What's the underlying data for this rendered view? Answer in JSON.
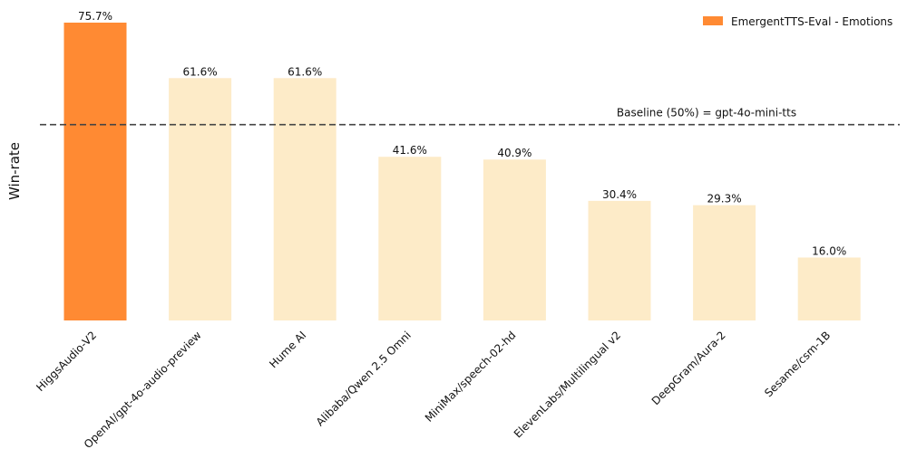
{
  "chart_data": {
    "type": "bar",
    "title": "",
    "xlabel": "",
    "ylabel": "Win-rate",
    "ylim": [
      0,
      80
    ],
    "grid": false,
    "legend_position": "top-right",
    "series": [
      {
        "name": "EmergentTTS-Eval - Emotions",
        "values": [
          75.7,
          61.6,
          61.6,
          41.6,
          40.9,
          30.4,
          29.3,
          16.0
        ]
      }
    ],
    "categories": [
      "HiggsAudio-V2",
      "OpenAI/gpt-4o-audio-preview",
      "Hume AI",
      "Alibaba/Qwen 2.5 Omni",
      "MiniMax/speech-02-hd",
      "ElevenLabs/Multilingual v2",
      "DeepGram/Aura-2",
      "Sesame/csm-1B"
    ],
    "value_labels": [
      "75.7%",
      "61.6%",
      "61.6%",
      "41.6%",
      "40.9%",
      "30.4%",
      "29.3%",
      "16.0%"
    ],
    "baseline": {
      "value": 50,
      "label": "Baseline (50%) = gpt-4o-mini-tts"
    },
    "colors": {
      "highlight": "#FF8A33",
      "other": "#FDEBC8",
      "baseline": "#444444"
    }
  }
}
